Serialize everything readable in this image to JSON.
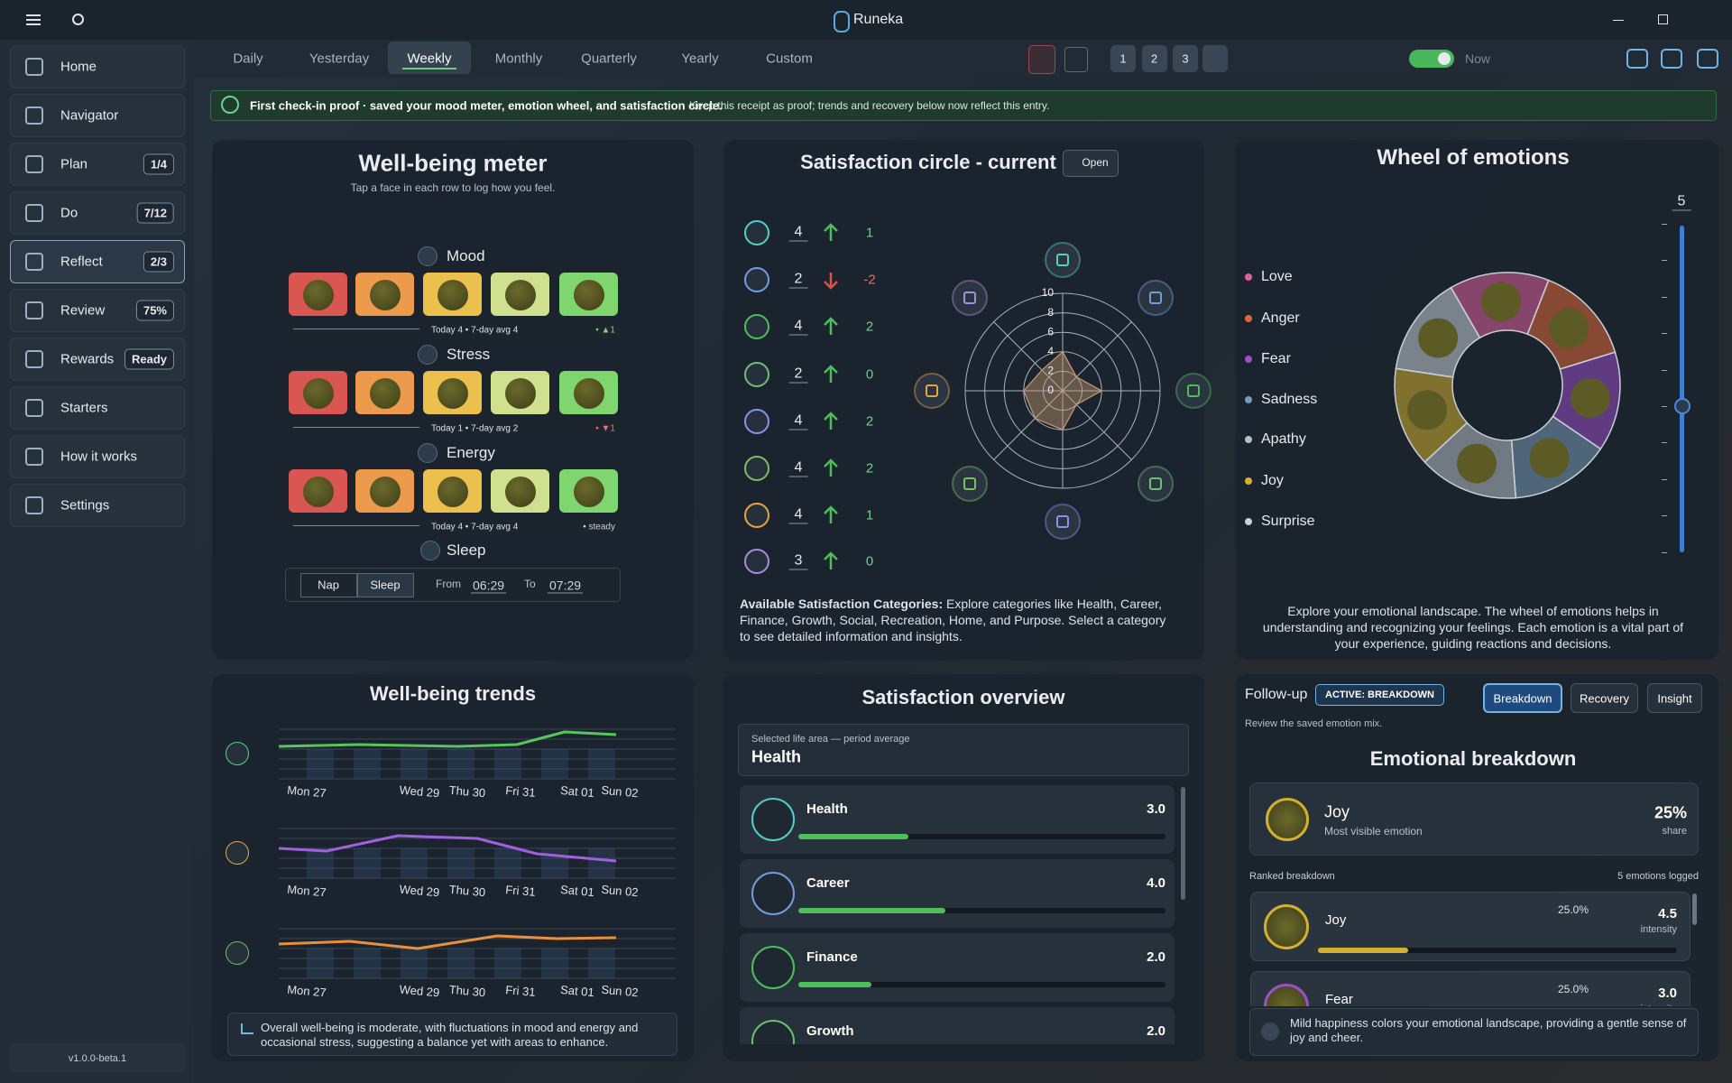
{
  "app": {
    "title": "Runeka",
    "version": "v1.0.0-beta.1"
  },
  "sidebar": [
    {
      "label": "Home"
    },
    {
      "label": "Navigator"
    },
    {
      "label": "Plan",
      "badge": "1/4"
    },
    {
      "label": "Do",
      "badge": "7/12"
    },
    {
      "label": "Reflect",
      "badge": "2/3",
      "active": true
    },
    {
      "label": "Review",
      "badge": "75%"
    },
    {
      "label": "Rewards",
      "badge": "Ready"
    },
    {
      "label": "Starters"
    },
    {
      "label": "How it works"
    },
    {
      "label": "Settings"
    }
  ],
  "tabs": [
    {
      "label": "Daily"
    },
    {
      "label": "Yesterday"
    },
    {
      "label": "Weekly",
      "active": true
    },
    {
      "label": "Monthly"
    },
    {
      "label": "Quarterly"
    },
    {
      "label": "Yearly"
    },
    {
      "label": "Custom"
    }
  ],
  "toolbar": {
    "slots": [
      "1",
      "2",
      "3"
    ],
    "toggle_on": true,
    "toggle_label": "Now"
  },
  "banner": {
    "title": "First check-in proof · saved your mood meter, emotion wheel, and satisfaction circle.",
    "detail": "Keep this receipt as proof; trends and recovery below now reflect this entry."
  },
  "wellbeing": {
    "title": "Well-being meter",
    "subtitle": "Tap a face in each row to log how you feel.",
    "rows": [
      {
        "label": "Mood",
        "summary": "Today 4 • 7-day avg 4",
        "delta": "• ▲1",
        "delta_color": "#7ad07a"
      },
      {
        "label": "Stress",
        "summary": "Today 1 • 7-day avg 2",
        "delta": "• ▼1",
        "delta_color": "#f07070"
      },
      {
        "label": "Energy",
        "summary": "Today 4 • 7-day avg 4",
        "delta": "• steady",
        "delta_color": "#c8ced6"
      }
    ],
    "sleep": {
      "label": "Sleep",
      "modes": [
        "Nap",
        "Sleep"
      ],
      "from_label": "From",
      "from": "06:29",
      "to_label": "To",
      "to": "07:29"
    }
  },
  "satisfaction_circle": {
    "title": "Satisfaction circle - current",
    "open": "Open",
    "rows": [
      {
        "value": 4,
        "change": 1,
        "icon_color": "#4fd1c5"
      },
      {
        "value": 2,
        "change": -2,
        "icon_color": "#6f9ee0"
      },
      {
        "value": 4,
        "change": 2,
        "icon_color": "#4cbf5a"
      },
      {
        "value": 2,
        "change": 0,
        "icon_color": "#6cc070"
      },
      {
        "value": 4,
        "change": 2,
        "icon_color": "#8b8ff0"
      },
      {
        "value": 4,
        "change": 2,
        "icon_color": "#7cc05a"
      },
      {
        "value": 4,
        "change": 1,
        "icon_color": "#e5a640"
      },
      {
        "value": 3,
        "change": 0,
        "icon_color": "#a98be0"
      }
    ],
    "radar_ticks": [
      0,
      2,
      4,
      6,
      8,
      10
    ],
    "note_label": "Available Satisfaction Categories:",
    "note": " Explore categories like Health, Career, Finance, Growth, Social, Recreation, Home, and Purpose. Select a category to see detailed information and insights."
  },
  "wheel": {
    "title": "Wheel of emotions",
    "level": 5,
    "emotions": [
      {
        "name": "Love",
        "color": "#e0609e"
      },
      {
        "name": "Anger",
        "color": "#e0663a"
      },
      {
        "name": "Fear",
        "color": "#9b4fc8"
      },
      {
        "name": "Sadness",
        "color": "#7a9ab8"
      },
      {
        "name": "Apathy",
        "color": "#b8c0c8"
      },
      {
        "name": "Joy",
        "color": "#d4b030"
      },
      {
        "name": "Surprise",
        "color": "#c8d0d8"
      }
    ],
    "description": "Explore your emotional landscape. The wheel of emotions helps in understanding and recognizing your feelings. Each emotion is a vital part of your experience, guiding reactions and decisions."
  },
  "trends": {
    "title": "Well-being trends",
    "days": [
      "Mon 27",
      "Wed 29",
      "Thu 30",
      "Fri 31",
      "Sat 01",
      "Sun 02"
    ],
    "summary": "Overall well-being is moderate, with fluctuations in mood and energy and occasional stress, suggesting a balance yet with areas to enhance."
  },
  "overview": {
    "title": "Satisfaction overview",
    "selected_caption": "Selected life area — period average",
    "selected": "Health",
    "items": [
      {
        "name": "Health",
        "value": 3,
        "value_label": "3.0",
        "color": "#4fd1c5"
      },
      {
        "name": "Career",
        "value": 4,
        "value_label": "4.0",
        "color": "#6f9ee0"
      },
      {
        "name": "Finance",
        "value": 2,
        "value_label": "2.0",
        "color": "#4cbf5a"
      },
      {
        "name": "Growth",
        "value": 2,
        "value_label": "2.0",
        "color": "#6cc070"
      }
    ]
  },
  "followup": {
    "label": "Follow-up",
    "active_chip": "ACTIVE: BREAKDOWN",
    "buttons": [
      {
        "label": "Breakdown",
        "active": true
      },
      {
        "label": "Recovery"
      },
      {
        "label": "Insight"
      }
    ],
    "hint": "Review the saved emotion mix."
  },
  "breakdown": {
    "title": "Emotional breakdown",
    "top": {
      "name": "Joy",
      "caption": "Most visible emotion",
      "share": "25%",
      "share_caption": "share"
    },
    "ranked_label": "Ranked breakdown",
    "count_label": "5 emotions logged",
    "items": [
      {
        "name": "Joy",
        "share": 25,
        "share_label": "25.0%",
        "intensity": "4.5",
        "intensity_caption": "intensity",
        "color": "#d4b030"
      },
      {
        "name": "Fear",
        "share": 25,
        "share_label": "25.0%",
        "intensity": "3.0",
        "intensity_caption": "intensity",
        "color": "#9b4fc8"
      }
    ],
    "info": "Mild happiness colors your emotional landscape, providing a gentle sense of joy and cheer."
  }
}
